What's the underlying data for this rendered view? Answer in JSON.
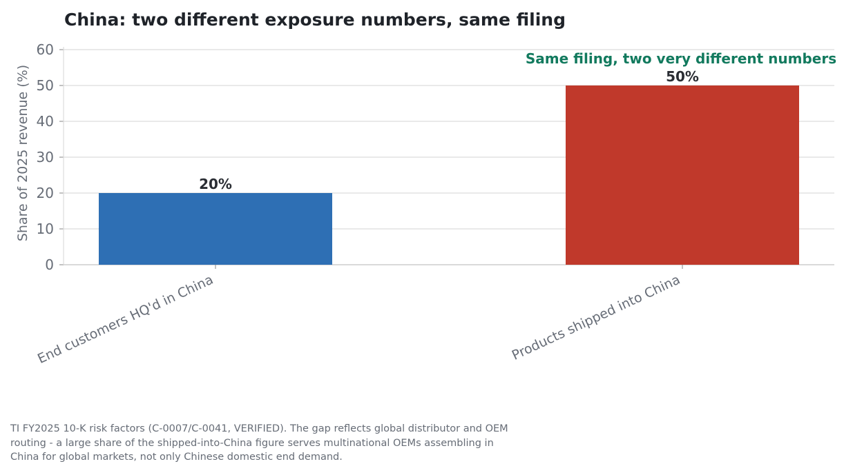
{
  "chart_data": {
    "type": "bar",
    "title": "China: two different exposure numbers, same filing",
    "xlabel": "",
    "ylabel": "Share of 2025 revenue (%)",
    "ylim": [
      0,
      60
    ],
    "yticks": [
      0,
      10,
      20,
      30,
      40,
      50,
      60
    ],
    "grid": true,
    "categories": [
      "End customers HQ'd in China",
      "Products shipped into China"
    ],
    "values": [
      20,
      50
    ],
    "value_labels": [
      "20%",
      "50%"
    ],
    "bar_colors": [
      "#2e6fb4",
      "#c0392b"
    ],
    "annotation": {
      "text": "Same filing, two very different numbers",
      "color": "#127a5e",
      "category_index": 1
    }
  },
  "footnote": "TI FY2025 10-K risk factors (C-0007/C-0041, VERIFIED). The gap reflects global distributor and OEM routing - a large share of the shipped-into-China figure serves multinational OEMs assembling in China for global markets, not only Chinese domestic end demand."
}
